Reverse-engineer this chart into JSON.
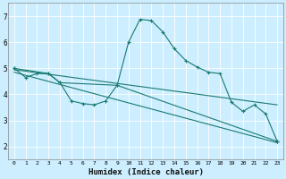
{
  "xlabel": "Humidex (Indice chaleur)",
  "bg_color": "#cceeff",
  "line_color": "#1a7a6e",
  "grid_color": "#ffffff",
  "xlim": [
    -0.5,
    23.5
  ],
  "ylim": [
    1.5,
    7.5
  ],
  "xticks": [
    0,
    1,
    2,
    3,
    4,
    5,
    6,
    7,
    8,
    9,
    10,
    11,
    12,
    13,
    14,
    15,
    16,
    17,
    18,
    19,
    20,
    21,
    22,
    23
  ],
  "yticks": [
    2,
    3,
    4,
    5,
    6,
    7
  ],
  "series1": [
    [
      0,
      5.0
    ],
    [
      1,
      4.65
    ],
    [
      2,
      4.8
    ],
    [
      3,
      4.8
    ],
    [
      4,
      4.45
    ],
    [
      5,
      3.75
    ],
    [
      6,
      3.65
    ],
    [
      7,
      3.6
    ],
    [
      8,
      3.75
    ],
    [
      9,
      4.35
    ],
    [
      10,
      6.0
    ],
    [
      11,
      6.88
    ],
    [
      12,
      6.83
    ],
    [
      13,
      6.4
    ],
    [
      14,
      5.75
    ],
    [
      15,
      5.3
    ],
    [
      16,
      5.05
    ],
    [
      17,
      4.85
    ],
    [
      18,
      4.8
    ],
    [
      19,
      3.7
    ],
    [
      20,
      3.35
    ],
    [
      21,
      3.6
    ],
    [
      22,
      3.25
    ],
    [
      23,
      2.2
    ]
  ],
  "series2": [
    [
      0,
      5.0
    ],
    [
      3,
      4.8
    ],
    [
      4,
      4.45
    ],
    [
      9,
      4.35
    ],
    [
      23,
      2.2
    ]
  ],
  "series3": [
    [
      0,
      4.95
    ],
    [
      23,
      3.6
    ]
  ],
  "series4": [
    [
      0,
      4.85
    ],
    [
      23,
      2.15
    ]
  ]
}
